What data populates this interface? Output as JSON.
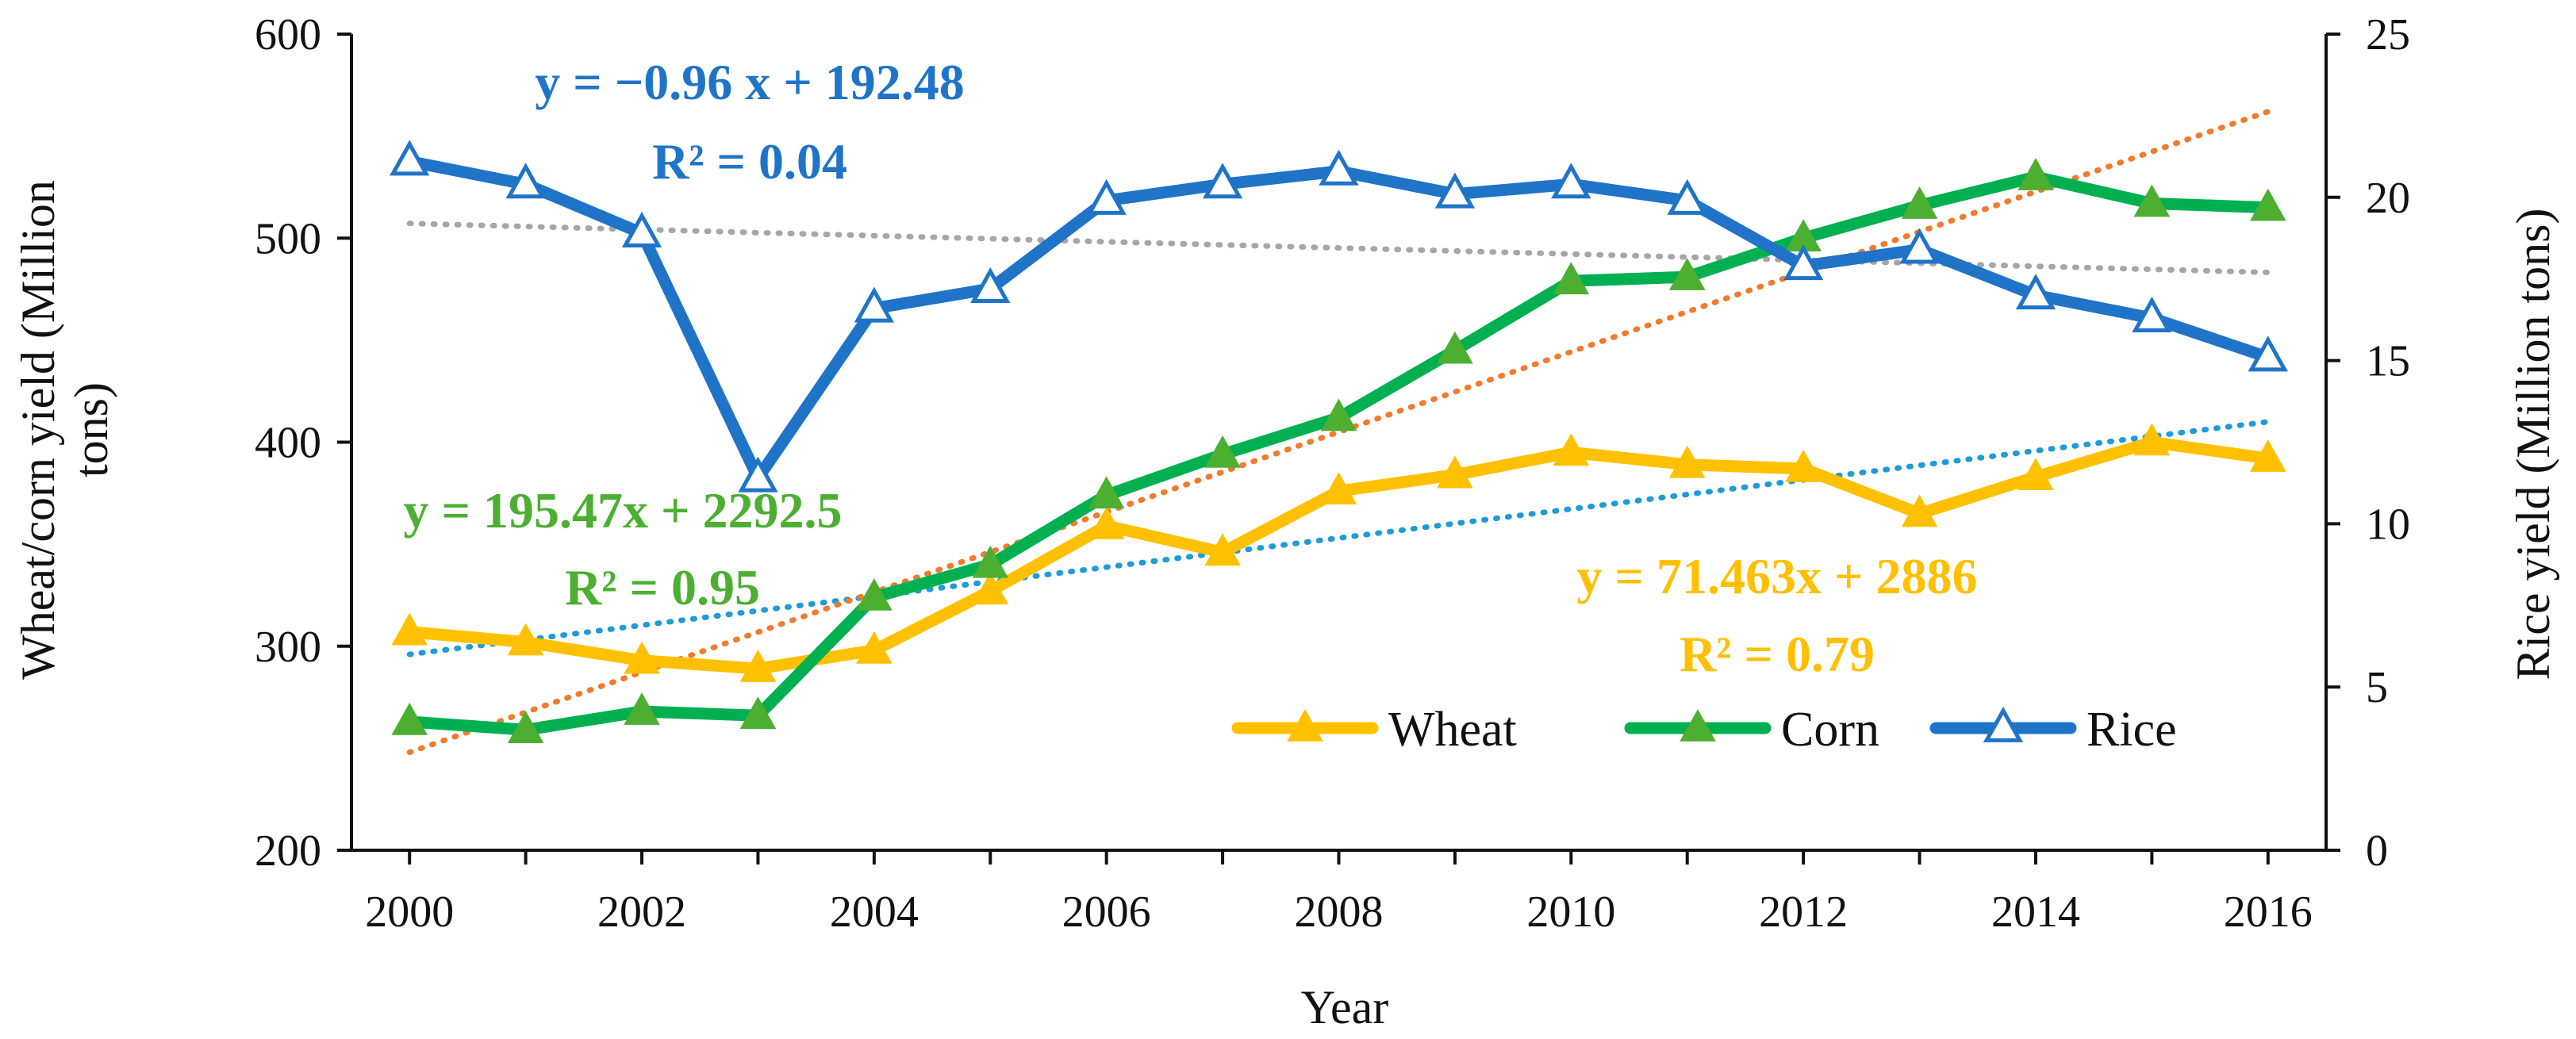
{
  "chart_data": {
    "type": "line",
    "x": [
      2000,
      2001,
      2002,
      2003,
      2004,
      2005,
      2006,
      2007,
      2008,
      2009,
      2010,
      2011,
      2012,
      2013,
      2014,
      2015,
      2016
    ],
    "xlabel": "Year",
    "xtick_labels": [
      "2000",
      "2002",
      "2004",
      "2006",
      "2008",
      "2010",
      "2012",
      "2014",
      "2016"
    ],
    "ylabel": "Wheat/corn yield (Million tons)",
    "ylabel_line1": "Wheat/corn yield (Million",
    "ylabel_line2": "tons)",
    "ylim": [
      200,
      600
    ],
    "yticks": [
      200,
      300,
      400,
      500,
      600
    ],
    "y2label": "Rice yield (Million tons)",
    "y2lim": [
      0,
      25
    ],
    "y2ticks": [
      0,
      5,
      10,
      15,
      20,
      25
    ],
    "series": [
      {
        "name": "Wheat",
        "axis": "left",
        "color": "#FFC000",
        "marker": "filled-triangle",
        "values": [
          307,
          302,
          293,
          289,
          298,
          327,
          359,
          346,
          376,
          384,
          395,
          389,
          387,
          365,
          383,
          400,
          392
        ]
      },
      {
        "name": "Corn",
        "axis": "left",
        "color": "#00B050",
        "marker_color": "#4CAF32",
        "marker": "filled-triangle",
        "values": [
          263,
          259,
          268,
          266,
          324,
          340,
          374,
          394,
          412,
          445,
          479,
          481,
          500,
          516,
          530,
          517,
          515
        ]
      },
      {
        "name": "Rice",
        "axis": "right",
        "color": "#1F74C8",
        "marker": "open-triangle",
        "values": [
          21.1,
          20.4,
          18.9,
          11.4,
          16.6,
          17.2,
          19.9,
          20.4,
          20.8,
          20.1,
          20.4,
          19.9,
          17.9,
          18.4,
          17.0,
          16.3,
          15.1
        ]
      }
    ],
    "trendlines": [
      {
        "of": "Wheat",
        "color": "#1F9BD7",
        "axis": "left",
        "start": 296,
        "end": 410,
        "equation": "y = 71.463x + 2886",
        "r2": "R² = 0.79",
        "label_color": "#FFC000"
      },
      {
        "of": "Corn",
        "color": "#F07B2E",
        "axis": "left",
        "start": 248,
        "end": 562,
        "equation": "y = 195.47x + 2292.5",
        "r2": "R² = 0.95",
        "label_color": "#4CAF32"
      },
      {
        "of": "Rice",
        "color": "#A6A6A6",
        "axis": "right",
        "start": 19.2,
        "end": 17.7,
        "equation": "y = −0.96 x + 192.48",
        "r2": "R² = 0.04",
        "label_color": "#1F74C8"
      }
    ],
    "legend": [
      "Wheat",
      "Corn",
      "Rice"
    ],
    "legend_position": "bottom-right",
    "grid": false
  }
}
